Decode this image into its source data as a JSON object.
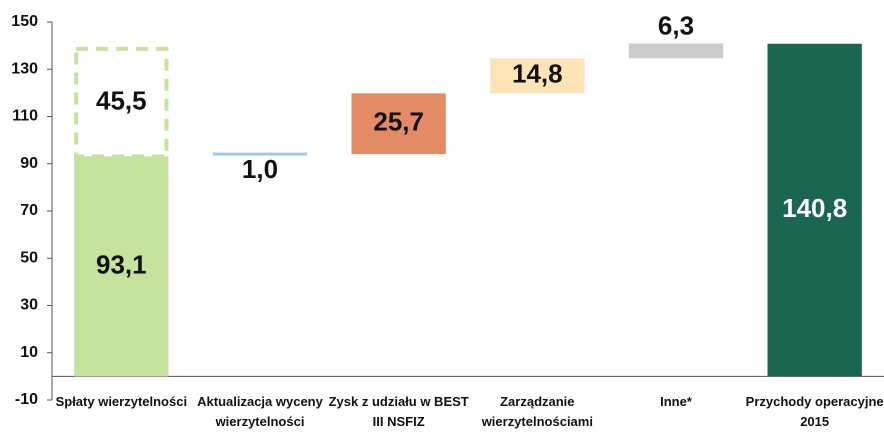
{
  "chart_data": {
    "type": "waterfall",
    "categories": [
      [
        "Spłaty wierzytelności"
      ],
      [
        "Aktualizacja wyceny",
        "wierzytelności"
      ],
      [
        "Zysk z udziału w BEST",
        "III NSFIZ"
      ],
      [
        "Zarządzanie",
        "wierzytelnościami"
      ],
      [
        "Inne*"
      ],
      [
        "Przychody operacyjne",
        "2015"
      ]
    ],
    "values": [
      93.1,
      1.0,
      25.7,
      14.8,
      6.3,
      140.8
    ],
    "value_labels": [
      "93,1",
      "1,0",
      "25,7",
      "14,8",
      "6,3",
      "140,8"
    ],
    "totals": [
      false,
      false,
      false,
      false,
      false,
      true
    ],
    "colors": [
      "#c5e39c",
      "#9ec9e6",
      "#e38b65",
      "#fde5b8",
      "#cccccc",
      "#1a6650"
    ],
    "label_colors": [
      "#111111",
      "#111111",
      "#111111",
      "#111111",
      "#111111",
      "#ffffff"
    ],
    "extra_values": [
      45.5,
      null,
      null,
      null,
      null,
      null
    ],
    "extra_value_labels": [
      "45,5",
      null,
      null,
      null,
      null,
      null
    ],
    "extra_style": {
      "color": "#c5e39c",
      "dashed": true
    },
    "ylim": [
      -10,
      150
    ],
    "yticks": [
      -10,
      10,
      30,
      50,
      70,
      90,
      110,
      130,
      150
    ]
  }
}
